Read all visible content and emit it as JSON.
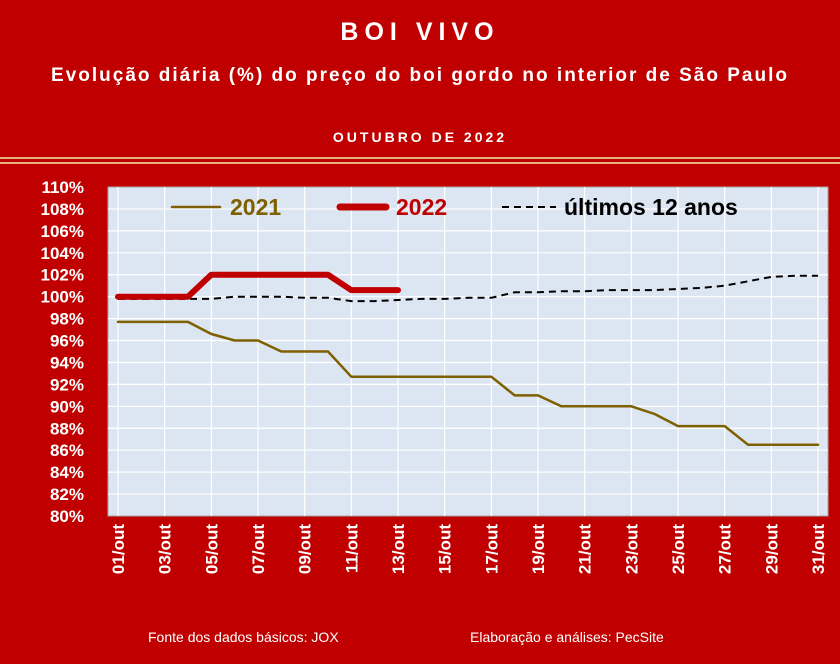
{
  "header": {
    "title": "BOI VIVO",
    "subtitle": "Evolução diária (%) do preço do boi gordo no interior de São Paulo",
    "period": "OUTUBRO DE 2022"
  },
  "footer": {
    "source": "Fonte dos dados básicos: JOX",
    "credits": "Elaboração e análises: PecSite"
  },
  "colors": {
    "background": "#c00000",
    "plot_area": "#dce6f2",
    "series_2021": "#7f6000",
    "series_2022": "#c00000",
    "series_avg": "#000000"
  },
  "chart_data": {
    "type": "line",
    "x": [
      1,
      2,
      3,
      4,
      5,
      6,
      7,
      8,
      9,
      10,
      11,
      12,
      13,
      14,
      15,
      16,
      17,
      18,
      19,
      20,
      21,
      22,
      23,
      24,
      25,
      26,
      27,
      28,
      29,
      30,
      31
    ],
    "x_tick_labels": [
      "01/out",
      "03/out",
      "05/out",
      "07/out",
      "09/out",
      "11/out",
      "13/out",
      "15/out",
      "17/out",
      "19/out",
      "21/out",
      "23/out",
      "25/out",
      "27/out",
      "29/out",
      "31/out"
    ],
    "y_tick_labels": [
      "80%",
      "82%",
      "84%",
      "86%",
      "88%",
      "90%",
      "92%",
      "94%",
      "96%",
      "98%",
      "100%",
      "102%",
      "104%",
      "106%",
      "108%",
      "110%"
    ],
    "ylim": [
      80,
      110
    ],
    "grid": true,
    "legend_position": "top",
    "series": [
      {
        "name": "2021",
        "values": [
          97.7,
          97.7,
          97.7,
          97.7,
          96.6,
          96.0,
          96.0,
          95.0,
          95.0,
          95.0,
          92.7,
          92.7,
          92.7,
          92.7,
          92.7,
          92.7,
          92.7,
          91.0,
          91.0,
          90.0,
          90.0,
          90.0,
          90.0,
          89.3,
          88.2,
          88.2,
          88.2,
          86.5,
          86.5,
          86.5,
          86.5
        ]
      },
      {
        "name": "2022",
        "values": [
          100.0,
          100.0,
          100.0,
          100.0,
          102.0,
          102.0,
          102.0,
          102.0,
          102.0,
          102.0,
          100.6,
          100.6,
          100.6,
          null,
          null,
          null,
          null,
          null,
          null,
          null,
          null,
          null,
          null,
          null,
          null,
          null,
          null,
          null,
          null,
          null,
          null
        ]
      },
      {
        "name": "últimos 12 anos",
        "values": [
          99.8,
          99.8,
          99.8,
          99.8,
          99.8,
          100.0,
          100.0,
          100.0,
          99.9,
          99.9,
          99.6,
          99.6,
          99.7,
          99.8,
          99.8,
          99.9,
          99.9,
          100.4,
          100.4,
          100.5,
          100.5,
          100.6,
          100.6,
          100.6,
          100.7,
          100.8,
          101.0,
          101.4,
          101.8,
          101.9,
          101.9
        ]
      }
    ]
  }
}
